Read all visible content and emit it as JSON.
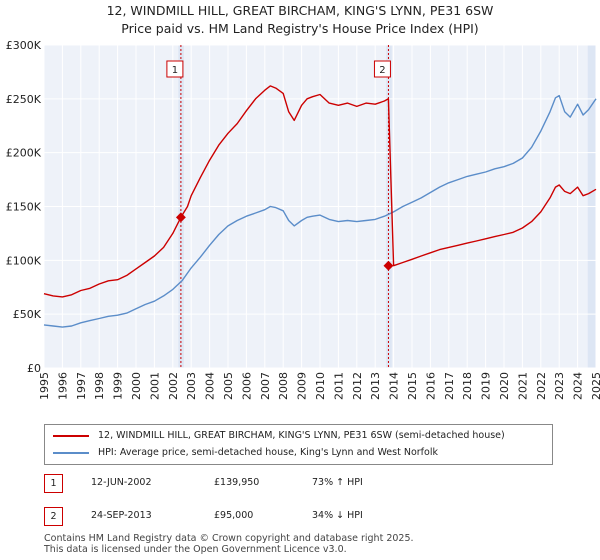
{
  "chart_data": {
    "type": "line",
    "title": "12, WINDMILL HILL, GREAT BIRCHAM, KING'S LYNN, PE31 6SW",
    "subtitle": "Price paid vs. HM Land Registry's House Price Index (HPI)",
    "xlabel": "",
    "ylabel": "",
    "xlim": [
      1995,
      2025
    ],
    "ylim": [
      0,
      300000
    ],
    "x_ticks": [
      "1995",
      "1996",
      "1997",
      "1998",
      "1999",
      "2000",
      "2001",
      "2002",
      "2003",
      "2004",
      "2005",
      "2006",
      "2007",
      "2008",
      "2009",
      "2010",
      "2011",
      "2012",
      "2013",
      "2014",
      "2015",
      "2016",
      "2017",
      "2018",
      "2019",
      "2020",
      "2021",
      "2022",
      "2023",
      "2024",
      "2025"
    ],
    "y_ticks": [
      {
        "value": 0,
        "label": "£0"
      },
      {
        "value": 50000,
        "label": "£50K"
      },
      {
        "value": 100000,
        "label": "£100K"
      },
      {
        "value": 150000,
        "label": "£150K"
      },
      {
        "value": 200000,
        "label": "£200K"
      },
      {
        "value": 250000,
        "label": "£250K"
      },
      {
        "value": 300000,
        "label": "£300K"
      }
    ],
    "series": [
      {
        "name": "12, WINDMILL HILL, GREAT BIRCHAM, KING'S LYNN, PE31 6SW (semi-detached house)",
        "color": "#cc0000",
        "x": [
          1995.0,
          1995.5,
          1996.0,
          1996.5,
          1997.0,
          1997.5,
          1998.0,
          1998.5,
          1999.0,
          1999.5,
          2000.0,
          2000.5,
          2001.0,
          2001.5,
          2002.0,
          2002.44,
          2002.8,
          2003.0,
          2003.5,
          2004.0,
          2004.5,
          2005.0,
          2005.5,
          2006.0,
          2006.5,
          2007.0,
          2007.3,
          2007.6,
          2008.0,
          2008.3,
          2008.6,
          2009.0,
          2009.3,
          2009.6,
          2010.0,
          2010.5,
          2011.0,
          2011.5,
          2012.0,
          2012.5,
          2013.0,
          2013.5,
          2013.72,
          2014.0,
          2014.5,
          2015.0,
          2015.5,
          2016.0,
          2016.5,
          2017.0,
          2017.5,
          2018.0,
          2018.5,
          2019.0,
          2019.5,
          2020.0,
          2020.5,
          2021.0,
          2021.5,
          2022.0,
          2022.5,
          2022.8,
          2023.0,
          2023.3,
          2023.6,
          2024.0,
          2024.3,
          2024.6,
          2025.0
        ],
        "y": [
          69000,
          67000,
          66000,
          68000,
          72000,
          74000,
          78000,
          81000,
          82000,
          86000,
          92000,
          98000,
          104000,
          112000,
          125000,
          139950,
          150000,
          160000,
          177000,
          193000,
          207000,
          218000,
          227000,
          239000,
          250000,
          258000,
          262000,
          260000,
          255000,
          238000,
          230000,
          244000,
          250000,
          252000,
          254000,
          246000,
          244000,
          246000,
          243000,
          246000,
          245000,
          248000,
          250000,
          95000,
          98000,
          101000,
          104000,
          107000,
          110000,
          112000,
          114000,
          116000,
          118000,
          120000,
          122000,
          124000,
          126000,
          130000,
          136000,
          145000,
          158000,
          168000,
          170000,
          164000,
          162000,
          168000,
          160000,
          162000,
          166000
        ]
      },
      {
        "name": "HPI: Average price, semi-detached house, King's Lynn and West Norfolk",
        "color": "#5b8dc9",
        "x": [
          1995.0,
          1995.5,
          1996.0,
          1996.5,
          1997.0,
          1997.5,
          1998.0,
          1998.5,
          1999.0,
          1999.5,
          2000.0,
          2000.5,
          2001.0,
          2001.5,
          2002.0,
          2002.5,
          2003.0,
          2003.5,
          2004.0,
          2004.5,
          2005.0,
          2005.5,
          2006.0,
          2006.5,
          2007.0,
          2007.3,
          2007.6,
          2008.0,
          2008.3,
          2008.6,
          2009.0,
          2009.3,
          2009.6,
          2010.0,
          2010.5,
          2011.0,
          2011.5,
          2012.0,
          2012.5,
          2013.0,
          2013.5,
          2014.0,
          2014.5,
          2015.0,
          2015.5,
          2016.0,
          2016.5,
          2017.0,
          2017.5,
          2018.0,
          2018.5,
          2019.0,
          2019.5,
          2020.0,
          2020.5,
          2021.0,
          2021.5,
          2022.0,
          2022.5,
          2022.8,
          2023.0,
          2023.3,
          2023.6,
          2024.0,
          2024.3,
          2024.6,
          2025.0
        ],
        "y": [
          40000,
          39000,
          38000,
          39000,
          42000,
          44000,
          46000,
          48000,
          49000,
          51000,
          55000,
          59000,
          62000,
          67000,
          73000,
          81000,
          93000,
          103000,
          114000,
          124000,
          132000,
          137000,
          141000,
          144000,
          147000,
          150000,
          149000,
          146000,
          137000,
          132000,
          137000,
          140000,
          141000,
          142000,
          138000,
          136000,
          137000,
          136000,
          137000,
          138000,
          141000,
          145000,
          150000,
          154000,
          158000,
          163000,
          168000,
          172000,
          175000,
          178000,
          180000,
          182000,
          185000,
          187000,
          190000,
          195000,
          205000,
          220000,
          238000,
          251000,
          253000,
          238000,
          233000,
          245000,
          235000,
          240000,
          250000
        ]
      }
    ],
    "annotations": [
      {
        "label": "1",
        "x": 2002.44,
        "y": 139950
      },
      {
        "label": "2",
        "x": 2013.72,
        "y": 95000
      }
    ]
  },
  "legend": {
    "red_label": "12, WINDMILL HILL, GREAT BIRCHAM, KING'S LYNN, PE31 6SW (semi-detached house)",
    "blue_label": "HPI: Average price, semi-detached house, King's Lynn and West Norfolk"
  },
  "sales": [
    {
      "num": "1",
      "date": "12-JUN-2002",
      "price": "£139,950",
      "hpi": "73% ↑ HPI"
    },
    {
      "num": "2",
      "date": "24-SEP-2013",
      "price": "£95,000",
      "hpi": "34% ↓ HPI"
    }
  ],
  "footer": {
    "line1": "Contains HM Land Registry data © Crown copyright and database right 2025.",
    "line2": "This data is licensed under the Open Government Licence v3.0."
  },
  "colors": {
    "red": "#cc0000",
    "blue": "#5b8dc9",
    "plot_bg": "#eef2f9",
    "shade": "#dde6f4",
    "grid": "#ffffff"
  }
}
